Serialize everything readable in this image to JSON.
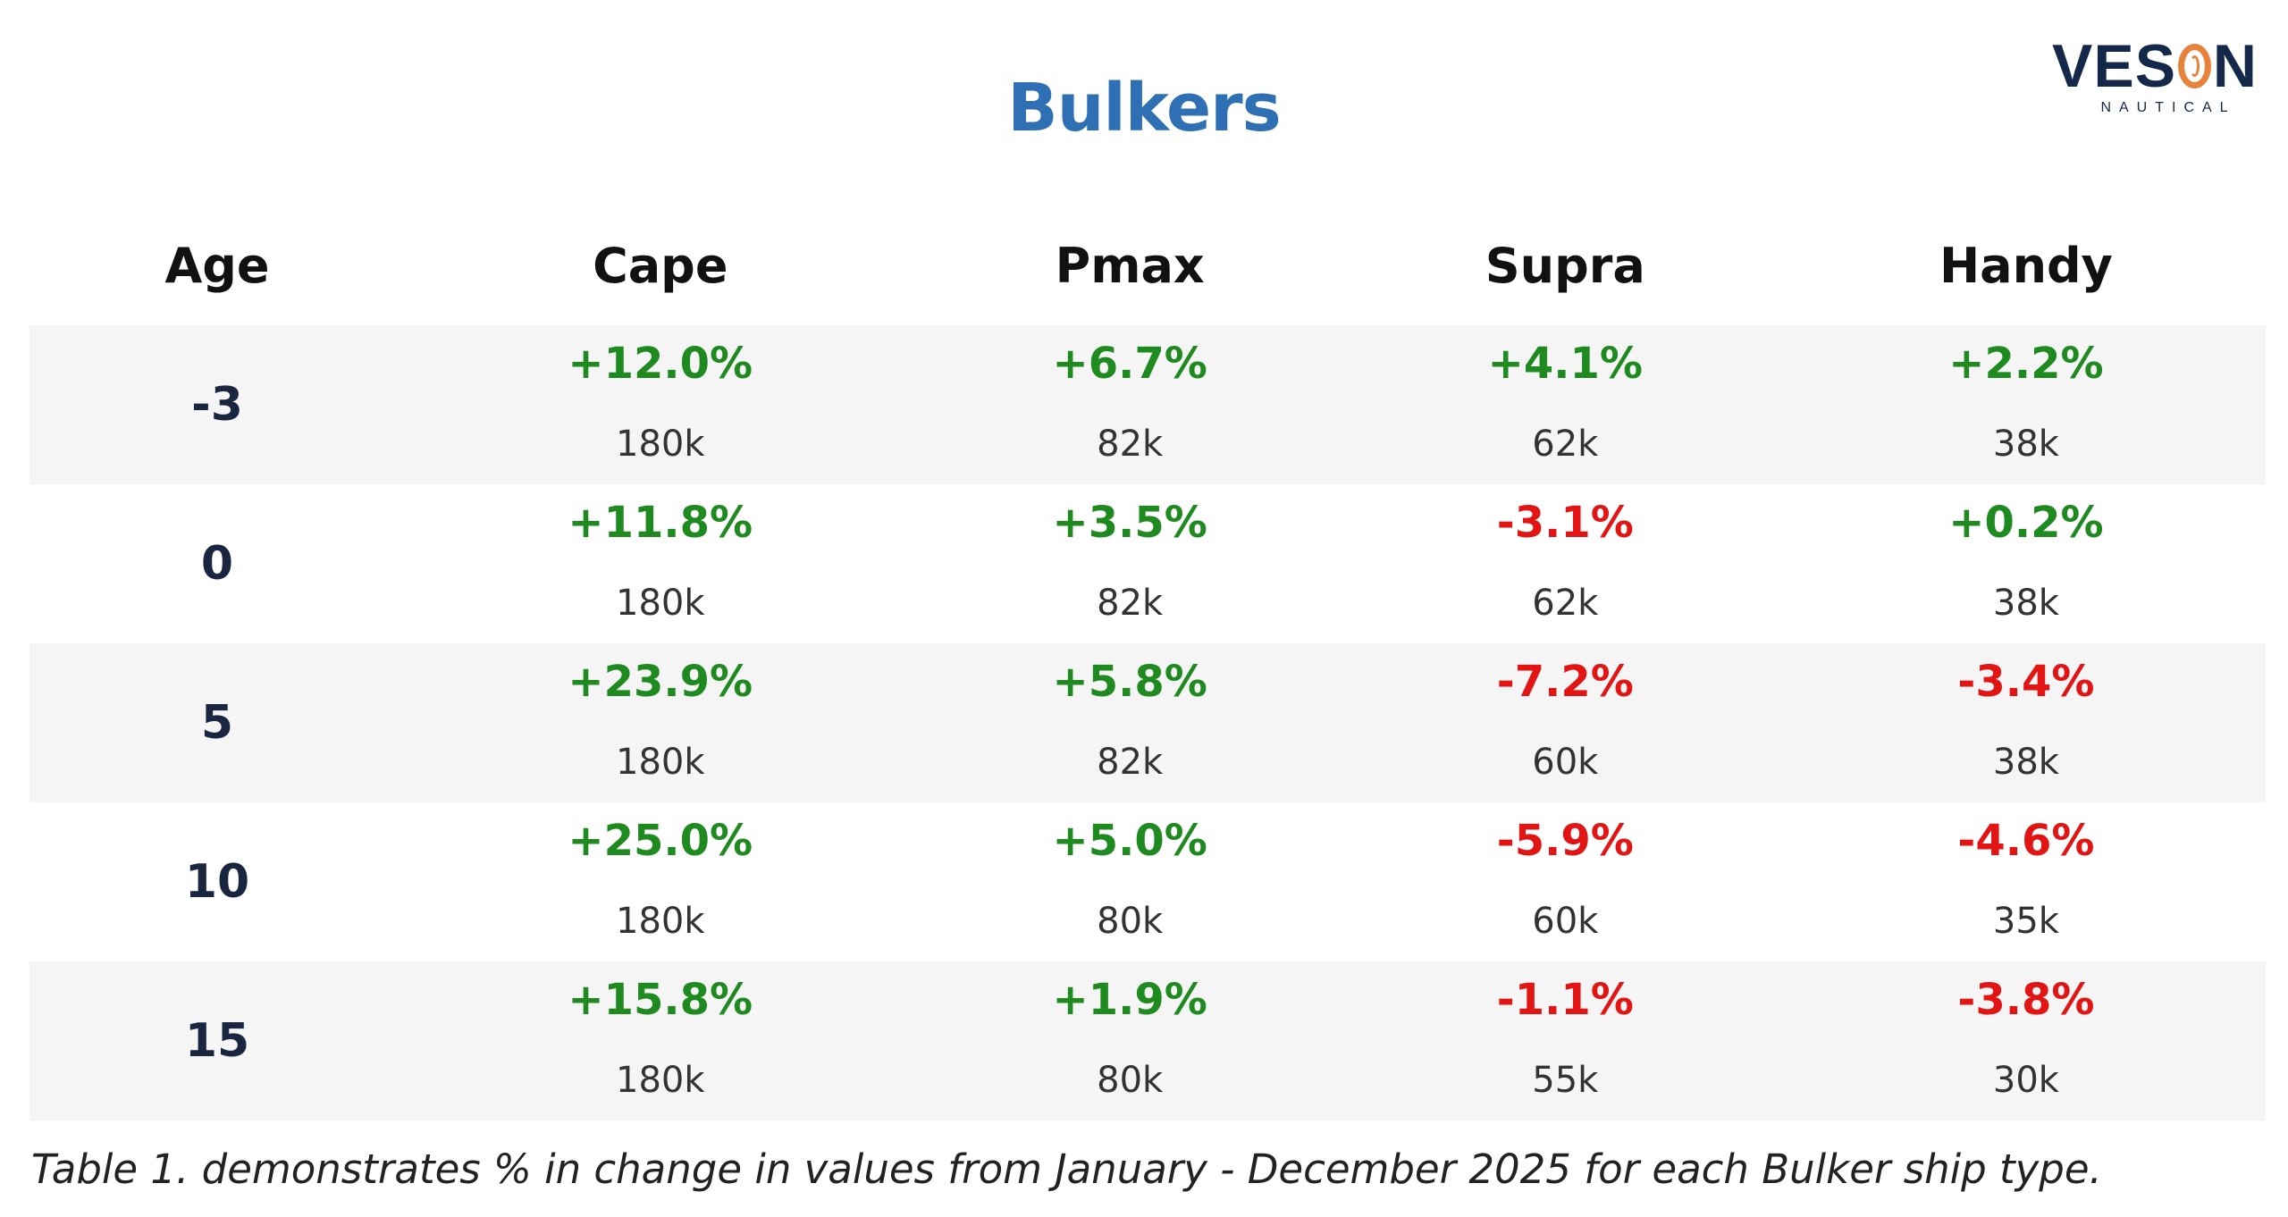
{
  "title": "Bulkers",
  "logo": {
    "word": "VESON",
    "sub": "NAUTICAL"
  },
  "colors": {
    "title": "#2f6fb3",
    "positive": "#1f8a1f",
    "negative": "#e31414",
    "age": "#1a2540",
    "band": "#f5f5f5",
    "logo_navy": "#14294a",
    "logo_orange": "#e8813a"
  },
  "table": {
    "headers": [
      "Age",
      "Cape",
      "Pmax",
      "Supra",
      "Handy"
    ],
    "rows": [
      {
        "age": "-3",
        "cells": [
          {
            "pct": "+12.0%",
            "size": "180k"
          },
          {
            "pct": "+6.7%",
            "size": "82k"
          },
          {
            "pct": "+4.1%",
            "size": "62k"
          },
          {
            "pct": "+2.2%",
            "size": "38k"
          }
        ]
      },
      {
        "age": "0",
        "cells": [
          {
            "pct": "+11.8%",
            "size": "180k"
          },
          {
            "pct": "+3.5%",
            "size": "82k"
          },
          {
            "pct": "-3.1%",
            "size": "62k"
          },
          {
            "pct": "+0.2%",
            "size": "38k"
          }
        ]
      },
      {
        "age": "5",
        "cells": [
          {
            "pct": "+23.9%",
            "size": "180k"
          },
          {
            "pct": "+5.8%",
            "size": "82k"
          },
          {
            "pct": "-7.2%",
            "size": "60k"
          },
          {
            "pct": "-3.4%",
            "size": "38k"
          }
        ]
      },
      {
        "age": "10",
        "cells": [
          {
            "pct": "+25.0%",
            "size": "180k"
          },
          {
            "pct": "+5.0%",
            "size": "80k"
          },
          {
            "pct": "-5.9%",
            "size": "60k"
          },
          {
            "pct": "-4.6%",
            "size": "35k"
          }
        ]
      },
      {
        "age": "15",
        "cells": [
          {
            "pct": "+15.8%",
            "size": "180k"
          },
          {
            "pct": "+1.9%",
            "size": "80k"
          },
          {
            "pct": "-1.1%",
            "size": "55k"
          },
          {
            "pct": "-3.8%",
            "size": "30k"
          }
        ]
      }
    ]
  },
  "caption": "Table 1. demonstrates % in change in values from January - December 2025 for each Bulker ship type."
}
